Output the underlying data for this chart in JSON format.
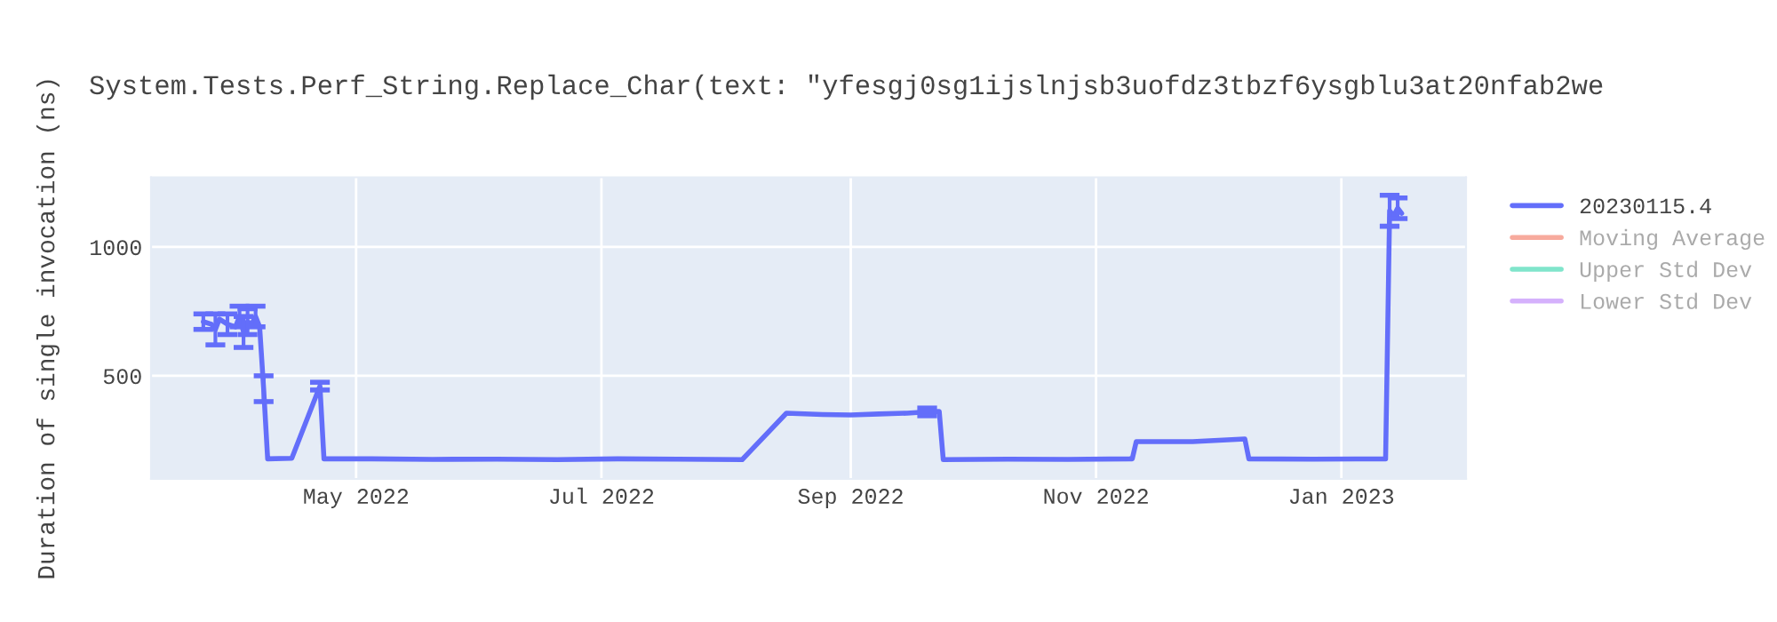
{
  "chart_data": {
    "type": "line",
    "title": "System.Tests.Perf_String.Replace_Char(text: \"yfesgj0sg1ijslnjsb3uofdz3tbzf6ysgblu3at20nfab2we",
    "ylabel": "Duration of single invocation (ns)",
    "xlim": [
      "2022-03-11",
      "2023-02-01"
    ],
    "xticks": [
      {
        "value": "2022-05-01",
        "label": "May 2022"
      },
      {
        "value": "2022-07-01",
        "label": "Jul 2022"
      },
      {
        "value": "2022-09-01",
        "label": "Sep 2022"
      },
      {
        "value": "2022-11-01",
        "label": "Nov 2022"
      },
      {
        "value": "2023-01-01",
        "label": "Jan 2023"
      }
    ],
    "ylim": [
      100,
      1270
    ],
    "yticks": [
      500,
      1000
    ],
    "grid": true,
    "legend": "top right",
    "series": [
      {
        "name": "20230115.4",
        "color": "#636efa",
        "x": [
          "2022-03-24",
          "2022-03-26",
          "2022-03-27",
          "2022-03-28",
          "2022-03-30",
          "2022-04-01",
          "2022-04-02",
          "2022-04-03",
          "2022-04-04",
          "2022-04-05",
          "2022-04-06",
          "2022-04-07",
          "2022-04-08",
          "2022-04-09",
          "2022-04-15",
          "2022-04-22",
          "2022-04-23",
          "2022-05-05",
          "2022-05-20",
          "2022-06-05",
          "2022-06-20",
          "2022-07-05",
          "2022-07-20",
          "2022-08-05",
          "2022-08-16",
          "2022-08-25",
          "2022-09-01",
          "2022-09-08",
          "2022-09-15",
          "2022-09-20",
          "2022-09-23",
          "2022-09-24",
          "2022-10-10",
          "2022-10-25",
          "2022-11-10",
          "2022-11-11",
          "2022-11-25",
          "2022-12-08",
          "2022-12-09",
          "2022-12-25",
          "2023-01-12",
          "2023-01-13",
          "2023-01-14",
          "2023-01-15",
          "2023-01-16"
        ],
        "values": [
          710,
          700,
          680,
          720,
          700,
          690,
          730,
          670,
          710,
          700,
          730,
          690,
          450,
          178,
          180,
          460,
          178,
          178,
          176,
          177,
          175,
          178,
          177,
          175,
          355,
          350,
          348,
          352,
          355,
          360,
          362,
          175,
          177,
          176,
          178,
          245,
          245,
          255,
          178,
          177,
          178,
          1140,
          1120,
          1150,
          1130
        ],
        "errors": [
          30,
          null,
          60,
          null,
          40,
          null,
          40,
          60,
          50,
          null,
          40,
          null,
          50,
          null,
          null,
          15,
          null,
          null,
          null,
          null,
          null,
          null,
          null,
          null,
          null,
          null,
          null,
          null,
          null,
          15,
          null,
          null,
          null,
          null,
          null,
          null,
          null,
          null,
          null,
          null,
          null,
          60,
          null,
          40,
          null
        ]
      },
      {
        "name": "Moving Average",
        "color": "#f7aa9d"
      },
      {
        "name": "Upper Std Dev",
        "color": "#80e5cb"
      },
      {
        "name": "Lower Std Dev",
        "color": "#d5b1fc"
      }
    ]
  }
}
